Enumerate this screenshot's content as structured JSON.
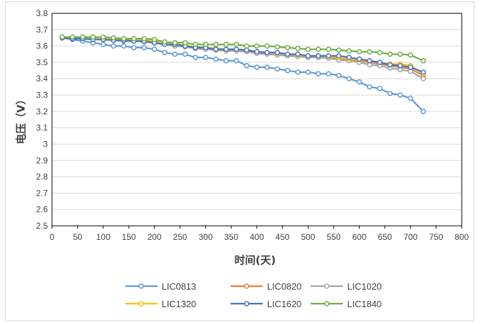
{
  "chart_data": {
    "type": "line",
    "xlabel": "时间(天)",
    "ylabel": "电压（V）",
    "xlim": [
      0,
      800
    ],
    "ylim": [
      2.5,
      3.8
    ],
    "xticks": [
      0,
      50,
      100,
      150,
      200,
      250,
      300,
      350,
      400,
      450,
      500,
      550,
      600,
      650,
      700,
      750,
      800
    ],
    "yticks": [
      "2.5",
      "2.6",
      "2.7",
      "2.8",
      "2.9",
      "3",
      "3.1",
      "3.2",
      "3.3",
      "3.4",
      "3.5",
      "3.6",
      "3.7",
      "3.8"
    ],
    "grid": "horizontal",
    "legend_position": "bottom",
    "series": [
      {
        "name": "LIC0813",
        "color": "#5b9bd5",
        "x": [
          20,
          40,
          60,
          80,
          100,
          120,
          140,
          160,
          180,
          200,
          220,
          240,
          260,
          280,
          300,
          320,
          340,
          360,
          380,
          400,
          420,
          440,
          460,
          480,
          500,
          520,
          540,
          560,
          580,
          600,
          620,
          640,
          660,
          680,
          700,
          725
        ],
        "y": [
          3.65,
          3.64,
          3.63,
          3.62,
          3.61,
          3.6,
          3.6,
          3.59,
          3.59,
          3.58,
          3.56,
          3.55,
          3.55,
          3.53,
          3.53,
          3.52,
          3.51,
          3.51,
          3.48,
          3.47,
          3.47,
          3.46,
          3.45,
          3.44,
          3.44,
          3.43,
          3.43,
          3.42,
          3.4,
          3.38,
          3.35,
          3.34,
          3.31,
          3.3,
          3.28,
          3.2
        ]
      },
      {
        "name": "LIC0820",
        "color": "#ed7d31",
        "x": [
          20,
          40,
          60,
          80,
          100,
          120,
          140,
          160,
          180,
          200,
          220,
          240,
          260,
          280,
          300,
          320,
          340,
          360,
          380,
          400,
          420,
          440,
          460,
          480,
          500,
          520,
          540,
          560,
          580,
          600,
          620,
          640,
          660,
          680,
          700,
          725
        ],
        "y": [
          3.65,
          3.65,
          3.645,
          3.645,
          3.64,
          3.64,
          3.635,
          3.63,
          3.63,
          3.62,
          3.61,
          3.605,
          3.6,
          3.59,
          3.585,
          3.58,
          3.575,
          3.575,
          3.57,
          3.56,
          3.555,
          3.55,
          3.545,
          3.54,
          3.535,
          3.535,
          3.53,
          3.52,
          3.52,
          3.51,
          3.5,
          3.49,
          3.48,
          3.47,
          3.46,
          3.42
        ]
      },
      {
        "name": "LIC1020",
        "color": "#a5a5a5",
        "x": [
          20,
          40,
          60,
          80,
          100,
          120,
          140,
          160,
          180,
          200,
          220,
          240,
          260,
          280,
          300,
          320,
          340,
          360,
          380,
          400,
          420,
          440,
          460,
          480,
          500,
          520,
          540,
          560,
          580,
          600,
          620,
          640,
          660,
          680,
          700,
          725
        ],
        "y": [
          3.65,
          3.65,
          3.645,
          3.64,
          3.64,
          3.635,
          3.63,
          3.63,
          3.625,
          3.62,
          3.61,
          3.6,
          3.595,
          3.585,
          3.58,
          3.575,
          3.57,
          3.57,
          3.565,
          3.555,
          3.55,
          3.545,
          3.54,
          3.535,
          3.53,
          3.53,
          3.525,
          3.515,
          3.51,
          3.5,
          3.485,
          3.48,
          3.465,
          3.455,
          3.445,
          3.4
        ]
      },
      {
        "name": "LIC1320",
        "color": "#ffc000",
        "x": [
          20,
          40,
          60,
          80,
          100,
          120,
          140,
          160,
          180,
          200,
          220,
          240,
          260,
          280,
          300,
          320,
          340,
          360,
          380,
          400,
          420,
          440,
          460,
          480,
          500,
          520,
          540,
          560,
          580,
          600,
          620,
          640,
          660,
          680,
          700,
          725
        ],
        "y": [
          3.65,
          3.65,
          3.65,
          3.645,
          3.645,
          3.64,
          3.64,
          3.635,
          3.635,
          3.63,
          3.615,
          3.61,
          3.605,
          3.595,
          3.59,
          3.585,
          3.58,
          3.58,
          3.575,
          3.565,
          3.56,
          3.555,
          3.55,
          3.545,
          3.54,
          3.54,
          3.535,
          3.53,
          3.52,
          3.515,
          3.51,
          3.5,
          3.49,
          3.49,
          3.48,
          3.43
        ]
      },
      {
        "name": "LIC1620",
        "color": "#4472c4",
        "x": [
          20,
          40,
          60,
          80,
          100,
          120,
          140,
          160,
          180,
          200,
          220,
          240,
          260,
          280,
          300,
          320,
          340,
          360,
          380,
          400,
          420,
          440,
          460,
          480,
          500,
          520,
          540,
          560,
          580,
          600,
          620,
          640,
          660,
          680,
          700,
          725
        ],
        "y": [
          3.65,
          3.645,
          3.645,
          3.64,
          3.64,
          3.635,
          3.635,
          3.63,
          3.63,
          3.62,
          3.61,
          3.61,
          3.6,
          3.59,
          3.59,
          3.58,
          3.58,
          3.58,
          3.575,
          3.565,
          3.56,
          3.56,
          3.55,
          3.55,
          3.54,
          3.54,
          3.54,
          3.54,
          3.53,
          3.52,
          3.51,
          3.5,
          3.485,
          3.48,
          3.47,
          3.44
        ]
      },
      {
        "name": "LIC1840",
        "color": "#70ad47",
        "x": [
          20,
          40,
          60,
          80,
          100,
          120,
          140,
          160,
          180,
          200,
          220,
          240,
          260,
          280,
          300,
          320,
          340,
          360,
          380,
          400,
          420,
          440,
          460,
          480,
          500,
          520,
          540,
          560,
          580,
          600,
          620,
          640,
          660,
          680,
          700,
          725
        ],
        "y": [
          3.655,
          3.655,
          3.655,
          3.655,
          3.655,
          3.65,
          3.645,
          3.645,
          3.645,
          3.64,
          3.625,
          3.62,
          3.62,
          3.61,
          3.61,
          3.61,
          3.61,
          3.61,
          3.6,
          3.6,
          3.6,
          3.595,
          3.59,
          3.585,
          3.58,
          3.58,
          3.58,
          3.575,
          3.57,
          3.565,
          3.565,
          3.56,
          3.55,
          3.55,
          3.545,
          3.51
        ]
      }
    ]
  }
}
